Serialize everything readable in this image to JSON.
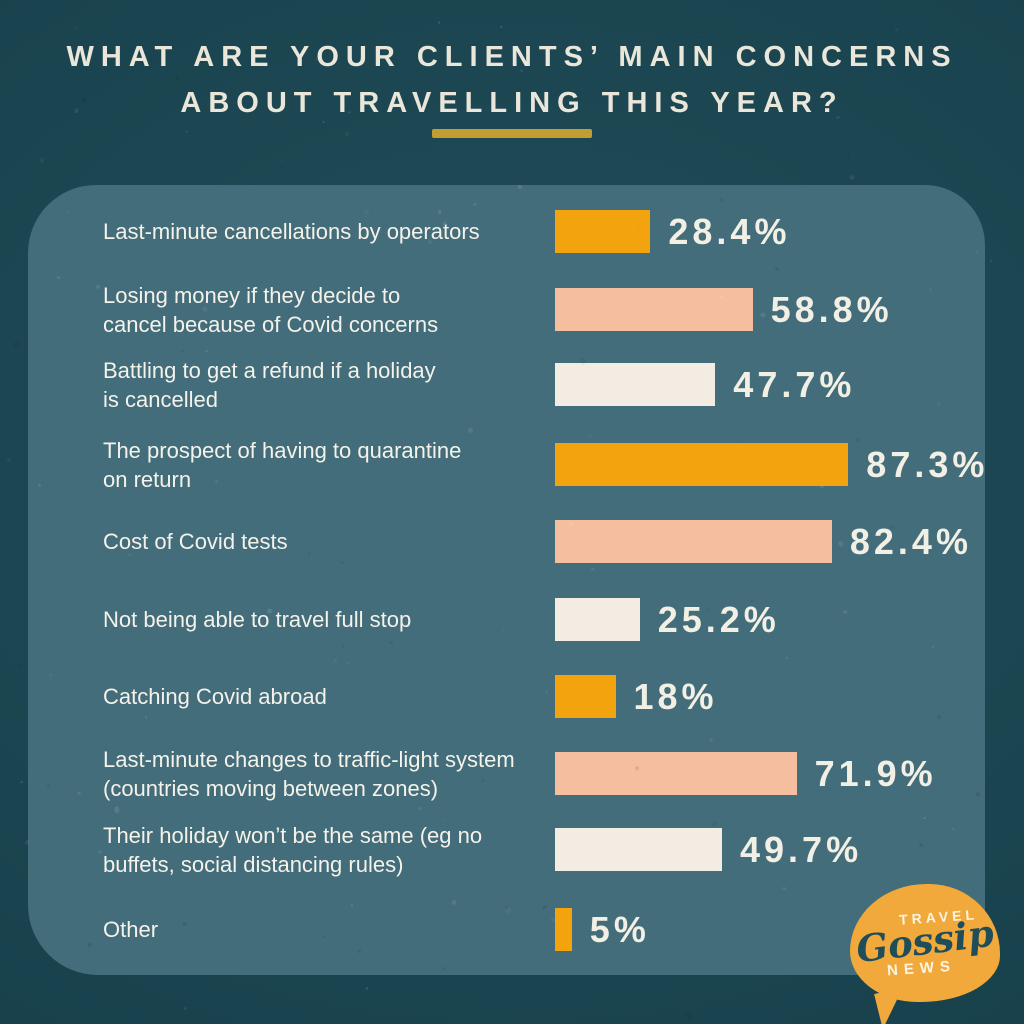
{
  "title": {
    "line1": "WHAT ARE YOUR CLIENTS’ MAIN CONCERNS",
    "line2": "ABOUT TRAVELLING THIS YEAR?"
  },
  "chart_data": {
    "type": "bar",
    "orientation": "horizontal",
    "title": "What are your clients’ main concerns about travelling this year?",
    "categories": [
      "Last-minute cancellations by operators",
      "Losing money if they decide to\ncancel because of Covid concerns",
      "Battling to get a refund if a holiday\nis cancelled",
      "The prospect of having to quarantine\non return",
      "Cost of Covid tests",
      "Not being able to travel full stop",
      "Catching Covid abroad",
      "Last-minute changes to traffic-light system\n(countries moving between zones)",
      "Their holiday won’t be the same (eg no\nbuffets, social distancing rules)",
      "Other"
    ],
    "values": [
      28.4,
      58.8,
      47.7,
      87.3,
      82.4,
      25.2,
      18,
      71.9,
      49.7,
      5
    ],
    "value_labels": [
      "28.4%",
      "58.8%",
      "47.7%",
      "87.3%",
      "82.4%",
      "25.2%",
      "18%",
      "71.9%",
      "49.7%",
      "5%"
    ],
    "unit": "%",
    "xlim": [
      0,
      100
    ],
    "grid": false,
    "legend": "none",
    "bar_color_cycle": [
      "orange",
      "salmon",
      "cream"
    ]
  },
  "colors": {
    "background": "#1A4854",
    "panel": "#436D7A",
    "orange": "#F2A30D",
    "salmon": "#F5BF9F",
    "cream": "#F3ECE2",
    "gold_divider": "#C19E2F",
    "title_text": "#EAE7DA",
    "label_text": "#F4F2EA",
    "value_text": "#F2EFE4",
    "logo_bubble": "#F2A93B",
    "logo_script_text": "#1F4D59"
  },
  "logo": {
    "top": "TRAVEL",
    "script": "Gossip",
    "bottom": "NEWS"
  }
}
